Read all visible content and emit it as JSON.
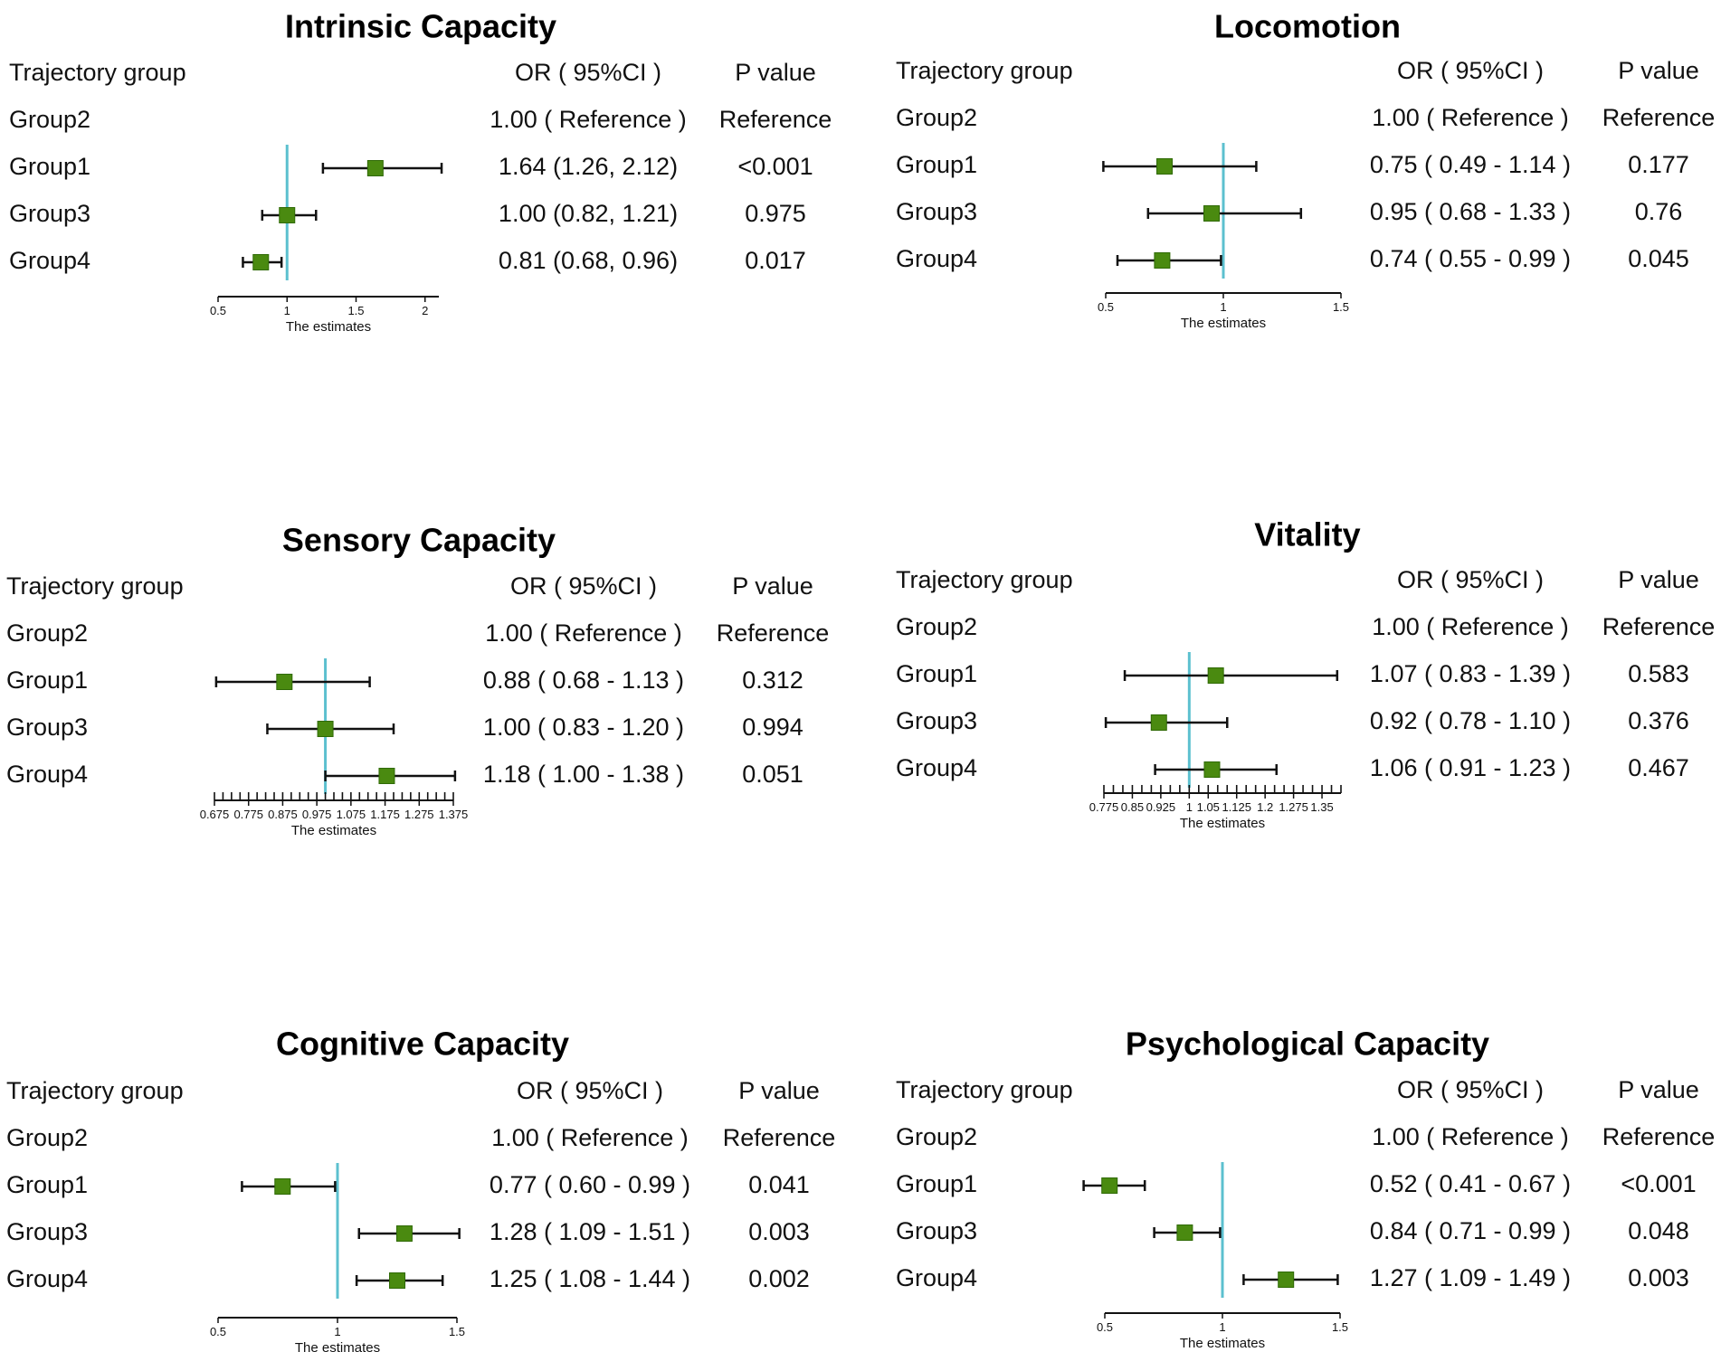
{
  "chart_data": [
    {
      "type": "forest",
      "title": "Intrinsic Capacity",
      "columns": [
        "Trajectory group",
        "OR ( 95%CI )",
        "P value"
      ],
      "xlabel": "The estimates",
      "xlim": [
        0.5,
        2.1
      ],
      "ticks": [
        "0.5",
        "1",
        "1.5",
        "2"
      ],
      "ref_line": 1,
      "rows": [
        {
          "group": "Group2",
          "or_text": "1.00 ( Reference )",
          "p": "Reference"
        },
        {
          "group": "Group1",
          "est": 1.64,
          "lo": 1.26,
          "hi": 2.12,
          "or_text": "1.64 (1.26, 2.12)",
          "p": "<0.001"
        },
        {
          "group": "Group3",
          "est": 1.0,
          "lo": 0.82,
          "hi": 1.21,
          "or_text": "1.00 (0.82, 1.21)",
          "p": "0.975"
        },
        {
          "group": "Group4",
          "est": 0.81,
          "lo": 0.68,
          "hi": 0.96,
          "or_text": "0.81 (0.68, 0.96)",
          "p": "0.017"
        }
      ]
    },
    {
      "type": "forest",
      "title": "Locomotion",
      "columns": [
        "Trajectory group",
        "OR ( 95%CI )",
        "P value"
      ],
      "xlabel": "The estimates",
      "xlim": [
        0.5,
        1.5
      ],
      "ticks": [
        "0.5",
        "1",
        "1.5"
      ],
      "ref_line": 1,
      "rows": [
        {
          "group": "Group2",
          "or_text": "1.00 ( Reference )",
          "p": "Reference"
        },
        {
          "group": "Group1",
          "est": 0.75,
          "lo": 0.49,
          "hi": 1.14,
          "or_text": "0.75 ( 0.49 - 1.14 )",
          "p": "0.177"
        },
        {
          "group": "Group3",
          "est": 0.95,
          "lo": 0.68,
          "hi": 1.33,
          "or_text": "0.95 ( 0.68 - 1.33 )",
          "p": "0.76"
        },
        {
          "group": "Group4",
          "est": 0.74,
          "lo": 0.55,
          "hi": 0.99,
          "or_text": "0.74 ( 0.55 - 0.99 )",
          "p": "0.045"
        }
      ]
    },
    {
      "type": "forest",
      "title": "Sensory Capacity",
      "columns": [
        "Trajectory group",
        "OR ( 95%CI )",
        "P value"
      ],
      "xlabel": "The estimates",
      "xlim": [
        0.675,
        1.375
      ],
      "ticks": [
        "0.675",
        "0.775",
        "0.875",
        "0.975",
        "1.075",
        "1.175",
        "1.275",
        "1.375"
      ],
      "minor_step": 0.025,
      "ref_line": 1,
      "rows": [
        {
          "group": "Group2",
          "or_text": "1.00 ( Reference )",
          "p": "Reference"
        },
        {
          "group": "Group1",
          "est": 0.88,
          "lo": 0.68,
          "hi": 1.13,
          "or_text": "0.88 ( 0.68 - 1.13 )",
          "p": "0.312"
        },
        {
          "group": "Group3",
          "est": 1.0,
          "lo": 0.83,
          "hi": 1.2,
          "or_text": "1.00 ( 0.83 - 1.20 )",
          "p": "0.994"
        },
        {
          "group": "Group4",
          "est": 1.18,
          "lo": 1.0,
          "hi": 1.38,
          "or_text": "1.18 ( 1.00 - 1.38 )",
          "p": "0.051"
        }
      ]
    },
    {
      "type": "forest",
      "title": "Vitality",
      "columns": [
        "Trajectory group",
        "OR ( 95%CI )",
        "P value"
      ],
      "xlabel": "The estimates",
      "xlim": [
        0.775,
        1.4
      ],
      "ticks": [
        "0.775",
        "0.85",
        "0.925",
        "1",
        "1.05",
        "1.125",
        "1.2",
        "1.275",
        "1.35"
      ],
      "minor_step": 0.025,
      "ref_line": 1,
      "rows": [
        {
          "group": "Group2",
          "or_text": "1.00 ( Reference )",
          "p": "Reference"
        },
        {
          "group": "Group1",
          "est": 1.07,
          "lo": 0.83,
          "hi": 1.39,
          "or_text": "1.07 ( 0.83 - 1.39 )",
          "p": "0.583"
        },
        {
          "group": "Group3",
          "est": 0.92,
          "lo": 0.78,
          "hi": 1.1,
          "or_text": "0.92 ( 0.78 - 1.10 )",
          "p": "0.376"
        },
        {
          "group": "Group4",
          "est": 1.06,
          "lo": 0.91,
          "hi": 1.23,
          "or_text": "1.06 ( 0.91 - 1.23 )",
          "p": "0.467"
        }
      ]
    },
    {
      "type": "forest",
      "title": "Cognitive Capacity",
      "columns": [
        "Trajectory group",
        "OR ( 95%CI )",
        "P value"
      ],
      "xlabel": "The estimates",
      "xlim": [
        0.5,
        1.5
      ],
      "ticks": [
        "0.5",
        "1",
        "1.5"
      ],
      "ref_line": 1,
      "rows": [
        {
          "group": "Group2",
          "or_text": "1.00 ( Reference )",
          "p": "Reference"
        },
        {
          "group": "Group1",
          "est": 0.77,
          "lo": 0.6,
          "hi": 0.99,
          "or_text": "0.77 ( 0.60 - 0.99 )",
          "p": "0.041"
        },
        {
          "group": "Group3",
          "est": 1.28,
          "lo": 1.09,
          "hi": 1.51,
          "or_text": "1.28 ( 1.09 - 1.51 )",
          "p": "0.003"
        },
        {
          "group": "Group4",
          "est": 1.25,
          "lo": 1.08,
          "hi": 1.44,
          "or_text": "1.25 ( 1.08 - 1.44 )",
          "p": "0.002"
        }
      ]
    },
    {
      "type": "forest",
      "title": "Psychological Capacity",
      "columns": [
        "Trajectory group",
        "OR ( 95%CI )",
        "P value"
      ],
      "xlabel": "The estimates",
      "xlim": [
        0.5,
        1.5
      ],
      "ticks": [
        "0.5",
        "1",
        "1.5"
      ],
      "ref_line": 1,
      "rows": [
        {
          "group": "Group2",
          "or_text": "1.00 ( Reference )",
          "p": "Reference"
        },
        {
          "group": "Group1",
          "est": 0.52,
          "lo": 0.41,
          "hi": 0.67,
          "or_text": "0.52 ( 0.41 - 0.67 )",
          "p": "<0.001"
        },
        {
          "group": "Group3",
          "est": 0.84,
          "lo": 0.71,
          "hi": 0.99,
          "or_text": "0.84 ( 0.71 - 0.99 )",
          "p": "0.048"
        },
        {
          "group": "Group4",
          "est": 1.27,
          "lo": 1.09,
          "hi": 1.49,
          "or_text": "1.27 ( 1.09 - 1.49 )",
          "p": "0.003"
        }
      ]
    }
  ],
  "colors": {
    "marker": "#4a8a10",
    "marker_edge": "#2f6a05",
    "ref_line": "#5cc0cf",
    "ink": "#111111"
  }
}
